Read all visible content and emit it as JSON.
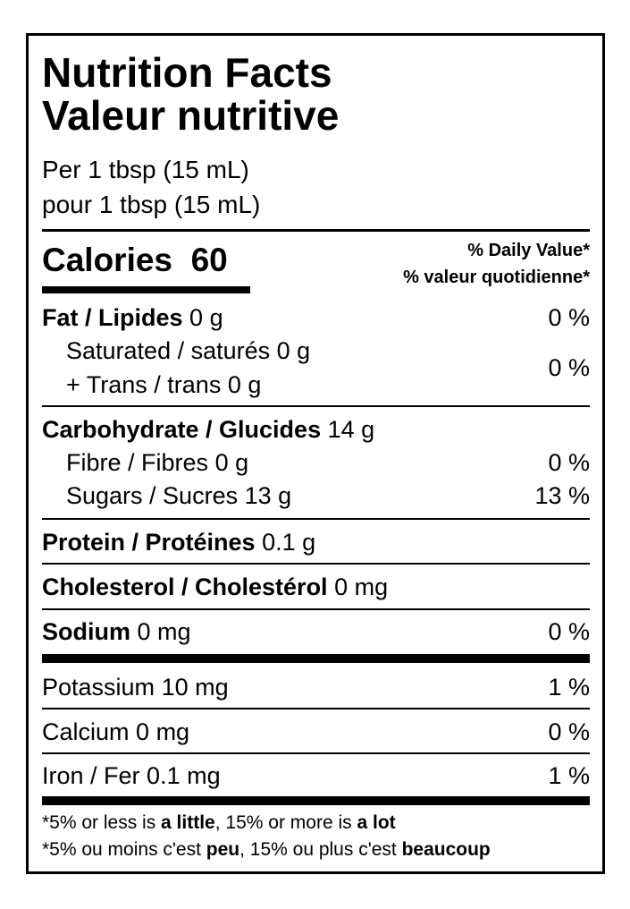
{
  "title_en": "Nutrition Facts",
  "title_fr": "Valeur nutritive",
  "serving_en": "Per 1 tbsp (15 mL)",
  "serving_fr": "pour 1 tbsp (15 mL)",
  "calories_label": "Calories",
  "calories_value": "60",
  "dv_en": "% Daily Value*",
  "dv_fr": "% valeur quotidienne*",
  "nutrients": {
    "fat": {
      "label": "Fat / Lipides",
      "amount": "0 g",
      "dv": "0 %"
    },
    "saturated": {
      "label": "Saturated / saturés",
      "amount": "0 g"
    },
    "trans": {
      "label": "+ Trans / trans",
      "amount": "0 g"
    },
    "sat_trans_dv": "0 %",
    "carb": {
      "label": "Carbohydrate / Glucides",
      "amount": "14 g"
    },
    "fibre": {
      "label": "Fibre / Fibres",
      "amount": "0 g",
      "dv": "0 %"
    },
    "sugars": {
      "label": "Sugars / Sucres",
      "amount": "13 g",
      "dv": "13 %"
    },
    "protein": {
      "label": "Protein / Protéines",
      "amount": "0.1 g"
    },
    "cholesterol": {
      "label": "Cholesterol / Cholestérol",
      "amount": "0 mg"
    },
    "sodium": {
      "label": "Sodium",
      "amount": "0 mg",
      "dv": "0 %"
    },
    "potassium": {
      "label": "Potassium",
      "amount": "10 mg",
      "dv": "1 %"
    },
    "calcium": {
      "label": "Calcium",
      "amount": "0 mg",
      "dv": "0 %"
    },
    "iron": {
      "label": "Iron / Fer",
      "amount": "0.1 mg",
      "dv": "1 %"
    }
  },
  "footnote_en": {
    "p1": "*5% or less is ",
    "b1": "a little",
    "p2": ", 15% or more is ",
    "b2": "a lot"
  },
  "footnote_fr": {
    "p1": "*5% ou moins c'est ",
    "b1": "peu",
    "p2": ", 15% ou plus c'est ",
    "b2": "beaucoup"
  }
}
